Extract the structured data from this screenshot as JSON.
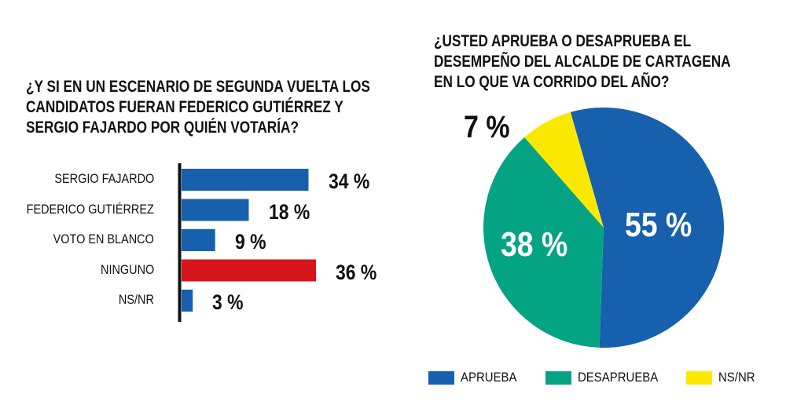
{
  "chart_data": [
    {
      "type": "bar",
      "orientation": "horizontal",
      "title": [
        "¿Y SI EN UN ESCENARIO DE SEGUNDA VUELTA LOS",
        "CANDIDATOS FUERAN FEDERICO GUTIÉRREZ Y",
        "SERGIO FAJARDO POR QUIÉN VOTARÍA?"
      ],
      "categories": [
        "SERGIO FAJARDO",
        "FEDERICO GUTIÉRREZ",
        "VOTO EN BLANCO",
        "NINGUNO",
        "NS/NR"
      ],
      "values": [
        34,
        18,
        9,
        36,
        3
      ],
      "labels": [
        "34 %",
        "18 %",
        "9 %",
        "36 %",
        "3 %"
      ],
      "colors": [
        "#1660ae",
        "#1660ae",
        "#1660ae",
        "#d7151b",
        "#1660ae"
      ],
      "grid": false
    },
    {
      "type": "pie",
      "title": [
        "¿USTED APRUEBA O DESAPRUEBA EL",
        "DESEMPEÑO DEL ALCALDE DE CARTAGENA",
        "EN LO QUE VA CORRIDO DEL AÑO?"
      ],
      "categories": [
        "APRUEBA",
        "DESAPRUEBA",
        "NS/NR"
      ],
      "values": [
        55,
        38,
        7
      ],
      "labels": [
        "55 %",
        "38 %",
        "7 %"
      ],
      "colors": [
        "#1660ae",
        "#04a383",
        "#fbe800"
      ],
      "legend": "bottom"
    }
  ]
}
